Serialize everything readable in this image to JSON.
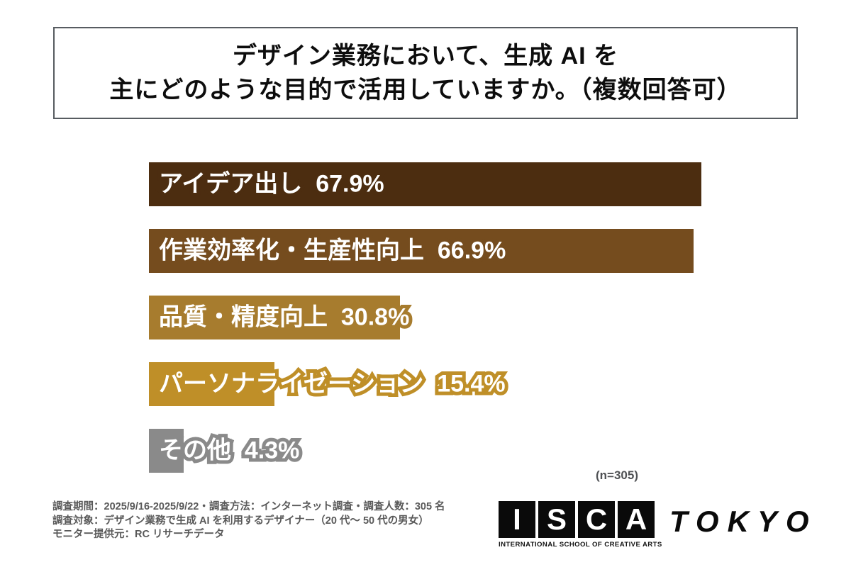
{
  "title": {
    "line1": "デザイン業務において、生成 AI を",
    "line2": "主にどのような目的で活用していますか。（複数回答可）"
  },
  "note": {
    "sample_size": "(n=305)"
  },
  "chart_data": {
    "type": "bar",
    "orientation": "horizontal",
    "title": "デザイン業務において、生成 AI を主にどのような目的で活用していますか。（複数回答可）",
    "unit": "%",
    "xlim": [
      0,
      100
    ],
    "grid": false,
    "legend": "none",
    "sample_size": 305,
    "categories": [
      "アイデア出し",
      "作業効率化・生産性向上",
      "品質・精度向上",
      "パーソナライゼーション",
      "その他"
    ],
    "values": [
      67.9,
      66.9,
      30.8,
      15.4,
      4.3
    ],
    "bars": [
      {
        "label": "アイデア出し",
        "value": 67.9,
        "display": "アイデア出し  67.9%",
        "color": "#4C2D10"
      },
      {
        "label": "作業効率化・生産性向上",
        "value": 66.9,
        "display": "作業効率化・生産性向上  66.9%",
        "color": "#754C1E"
      },
      {
        "label": "品質・精度向上",
        "value": 30.8,
        "display": "品質・精度向上  30.8%",
        "color": "#A77C2E"
      },
      {
        "label": "パーソナライゼーション",
        "value": 15.4,
        "display": "パーソナライゼーション  15.4%",
        "color": "#BF8F28"
      },
      {
        "label": "その他",
        "value": 4.3,
        "display": "その他  4.3%",
        "color": "#8A8A8A"
      }
    ]
  },
  "footer": {
    "line1": "調査期間：2025/9/16-2025/9/22・調査方法：インターネット調査・調査人数：305 名",
    "line2": "調査対象：デザイン業務で生成 AI を利用するデザイナー（20 代〜 50 代の男女）",
    "line3": "モニター提供元：RC リサーチデータ"
  },
  "logo": {
    "letters": [
      "I",
      "S",
      "C",
      "A"
    ],
    "caption": "INTERNATIONAL SCHOOL OF CREATIVE ARTS",
    "wordmark": "TOKYO"
  }
}
